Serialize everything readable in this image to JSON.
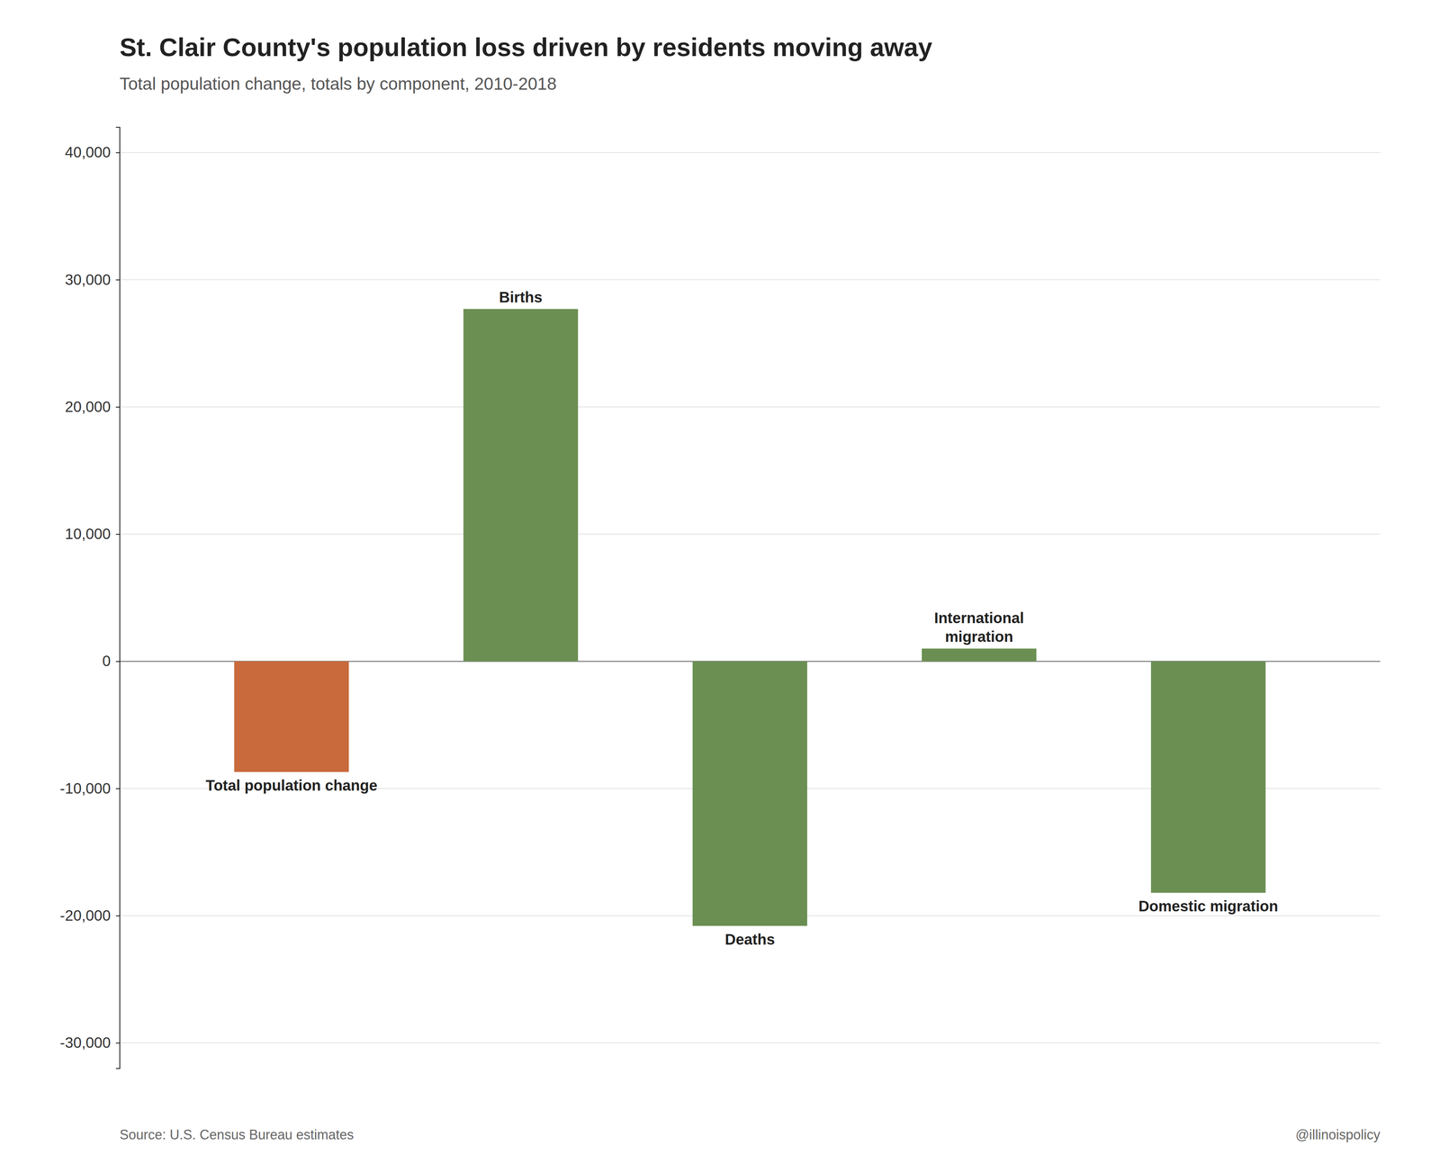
{
  "chart_data": {
    "type": "bar",
    "title": "St. Clair County's population loss driven by residents moving away",
    "subtitle": "Total population change, totals by component, 2010-2018",
    "categories": [
      "Total population change",
      "Births",
      "Deaths",
      "International\nmigration",
      "Domestic migration"
    ],
    "values": [
      -8700,
      27700,
      -20800,
      1000,
      -18200
    ],
    "colors": [
      "#c96a3c",
      "#6b8f52",
      "#6b8f52",
      "#6b8f52",
      "#6b8f52"
    ],
    "ylim": [
      -32000,
      42000
    ],
    "yticks": [
      {
        "value": -30000,
        "label": "-30,000"
      },
      {
        "value": -20000,
        "label": "-20,000"
      },
      {
        "value": -10000,
        "label": "-10,000"
      },
      0,
      {
        "value": 10000,
        "label": "10,000"
      },
      {
        "value": 20000,
        "label": "20,000"
      },
      {
        "value": 30000,
        "label": "30,000"
      },
      {
        "value": 40000,
        "label": "40,000"
      }
    ],
    "grid": true,
    "tick_labels": "y",
    "annotations": [
      "Source: U.S. Census Bureau estimates",
      "@illinoispolicy"
    ]
  }
}
